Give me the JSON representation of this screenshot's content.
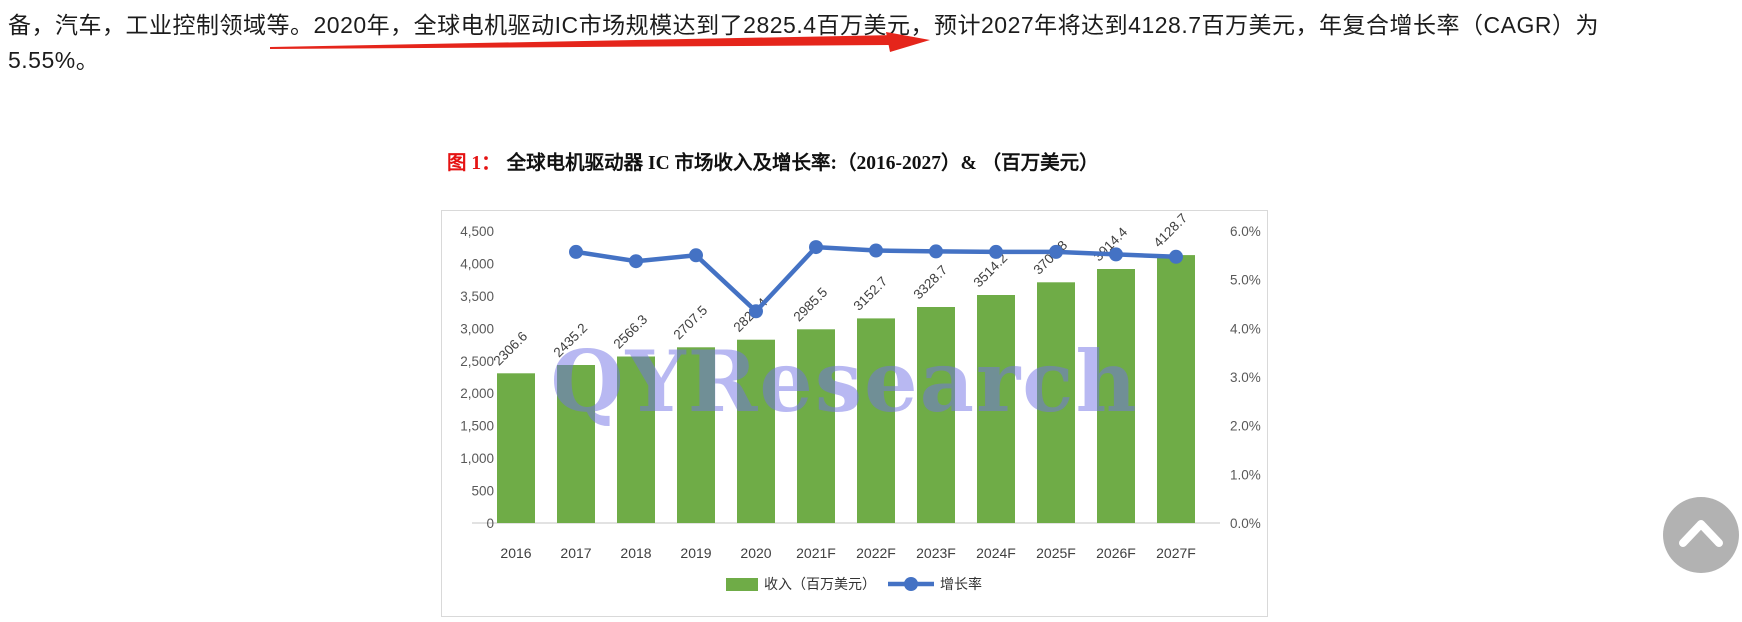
{
  "paragraph": {
    "line1": "备，汽车，工业控制领域等。2020年，全球电机驱动IC市场规模达到了2825.4百万美元，预计2027年将达到4128.7百万美元，年复合增长率（CAGR）为",
    "line2": "5.55%。"
  },
  "annotation": {
    "shape": "red-underline-arrow",
    "color": "#e5251b"
  },
  "figure": {
    "label": "图 1：",
    "label_color": "#e51313",
    "title": "全球电机驱动器 IC 市场收入及增长率:（2016-2027）& （百万美元）"
  },
  "chart_data": {
    "type": "bar",
    "subtype": "bar+line-combo",
    "title": "全球电机驱动器 IC 市场收入及增长率:（2016-2027）& （百万美元）",
    "watermark": "QYResearch",
    "grid": false,
    "legend_position": "bottom",
    "categories": [
      "2016",
      "2017",
      "2018",
      "2019",
      "2020",
      "2021F",
      "2022F",
      "2023F",
      "2024F",
      "2025F",
      "2026F",
      "2027F"
    ],
    "series": [
      {
        "name": "收入（百万美元）",
        "type": "bar",
        "axis": "left",
        "color": "#6fac47",
        "values": [
          2306.6,
          2435.2,
          2566.3,
          2707.5,
          2825.4,
          2985.5,
          3152.7,
          3328.7,
          3514.2,
          3709.8,
          3914.4,
          4128.7
        ]
      },
      {
        "name": "增长率",
        "type": "line",
        "axis": "right",
        "color": "#4472c4",
        "values": [
          null,
          5.57,
          5.38,
          5.5,
          4.35,
          5.67,
          5.6,
          5.58,
          5.57,
          5.57,
          5.52,
          5.47
        ]
      }
    ],
    "left_axis": {
      "min": 0,
      "max": 4500,
      "step": 500,
      "tick_labels": [
        "4,500",
        "4,000",
        "3,500",
        "3,000",
        "2,500",
        "2,000",
        "1,500",
        "1,000",
        "500",
        "0"
      ]
    },
    "right_axis": {
      "min": 0,
      "max": 6,
      "step": 1,
      "tick_labels": [
        "6.0%",
        "5.0%",
        "4.0%",
        "3.0%",
        "2.0%",
        "1.0%",
        "0.0%"
      ]
    }
  },
  "scroll_button": {
    "icon": "chevron-up",
    "color": "#b2b2b2"
  }
}
